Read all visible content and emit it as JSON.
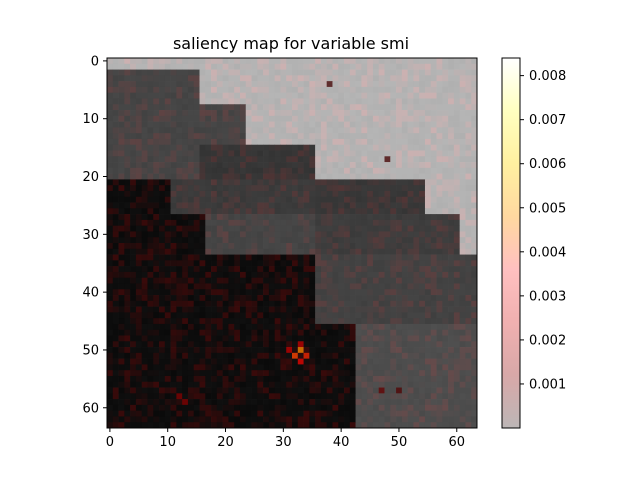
{
  "chart_data": {
    "type": "heatmap",
    "title": "saliency map for variable smi",
    "xlabel": "",
    "ylabel": "",
    "grid_size": [
      64,
      64
    ],
    "x_ticks": [
      0,
      10,
      20,
      30,
      40,
      50,
      60
    ],
    "y_ticks": [
      0,
      10,
      20,
      30,
      40,
      50,
      60
    ],
    "xlim": [
      -0.5,
      63.5
    ],
    "ylim": [
      63.5,
      -0.5
    ],
    "background_regions": [
      {
        "x0": 0,
        "x1": 16,
        "y0": 0,
        "y1": 2,
        "gray": 0.7
      },
      {
        "x0": 16,
        "x1": 64,
        "y0": 0,
        "y1": 8,
        "gray": 0.7
      },
      {
        "x0": 0,
        "x1": 16,
        "y0": 2,
        "y1": 21,
        "gray": 0.27
      },
      {
        "x0": 16,
        "x1": 24,
        "y0": 8,
        "y1": 15,
        "gray": 0.27
      },
      {
        "x0": 24,
        "x1": 64,
        "y0": 8,
        "y1": 15,
        "gray": 0.7
      },
      {
        "x0": 16,
        "x1": 36,
        "y0": 15,
        "y1": 21,
        "gray": 0.21
      },
      {
        "x0": 36,
        "x1": 64,
        "y0": 15,
        "y1": 21,
        "gray": 0.7
      },
      {
        "x0": 0,
        "x1": 11,
        "y0": 21,
        "y1": 27,
        "gray": 0.05
      },
      {
        "x0": 11,
        "x1": 36,
        "y0": 21,
        "y1": 27,
        "gray": 0.23
      },
      {
        "x0": 36,
        "x1": 55,
        "y0": 21,
        "y1": 27,
        "gray": 0.22
      },
      {
        "x0": 55,
        "x1": 64,
        "y0": 21,
        "y1": 27,
        "gray": 0.7
      },
      {
        "x0": 0,
        "x1": 17,
        "y0": 27,
        "y1": 34,
        "gray": 0.05
      },
      {
        "x0": 17,
        "x1": 36,
        "y0": 27,
        "y1": 34,
        "gray": 0.27
      },
      {
        "x0": 36,
        "x1": 61,
        "y0": 27,
        "y1": 34,
        "gray": 0.24
      },
      {
        "x0": 61,
        "x1": 64,
        "y0": 27,
        "y1": 34,
        "gray": 0.7
      },
      {
        "x0": 0,
        "x1": 36,
        "y0": 34,
        "y1": 46,
        "gray": 0.05
      },
      {
        "x0": 36,
        "x1": 64,
        "y0": 34,
        "y1": 46,
        "gray": 0.26
      },
      {
        "x0": 0,
        "x1": 43,
        "y0": 46,
        "y1": 64,
        "gray": 0.05
      },
      {
        "x0": 43,
        "x1": 64,
        "y0": 46,
        "y1": 64,
        "gray": 0.3
      }
    ],
    "hotspots": [
      {
        "x": 33,
        "y": 50,
        "value": 0.0055
      },
      {
        "x": 32,
        "y": 51,
        "value": 0.0045
      },
      {
        "x": 34,
        "y": 51,
        "value": 0.004
      },
      {
        "x": 31,
        "y": 50,
        "value": 0.003
      },
      {
        "x": 33,
        "y": 49,
        "value": 0.003
      },
      {
        "x": 33,
        "y": 52,
        "value": 0.0035
      },
      {
        "x": 12,
        "y": 58,
        "value": 0.002
      },
      {
        "x": 13,
        "y": 59,
        "value": 0.002
      },
      {
        "x": 47,
        "y": 57,
        "value": 0.0015
      },
      {
        "x": 50,
        "y": 57,
        "value": 0.0012
      },
      {
        "x": 38,
        "y": 4,
        "value": 0.001
      },
      {
        "x": 48,
        "y": 17,
        "value": 0.001
      }
    ],
    "colorbar": {
      "vmin": 0.0,
      "vmax": 0.0084,
      "ticks": [
        "0.001",
        "0.002",
        "0.003",
        "0.004",
        "0.005",
        "0.006",
        "0.007",
        "0.008"
      ],
      "tick_values": [
        0.001,
        0.002,
        0.003,
        0.004,
        0.005,
        0.006,
        0.007,
        0.008
      ],
      "colors": [
        "#bcb6b6",
        "#d8a8a8",
        "#f0b0b0",
        "#ffc0c0",
        "#ffd8a0",
        "#fff0a0",
        "#ffffc0",
        "#ffffff"
      ]
    }
  }
}
